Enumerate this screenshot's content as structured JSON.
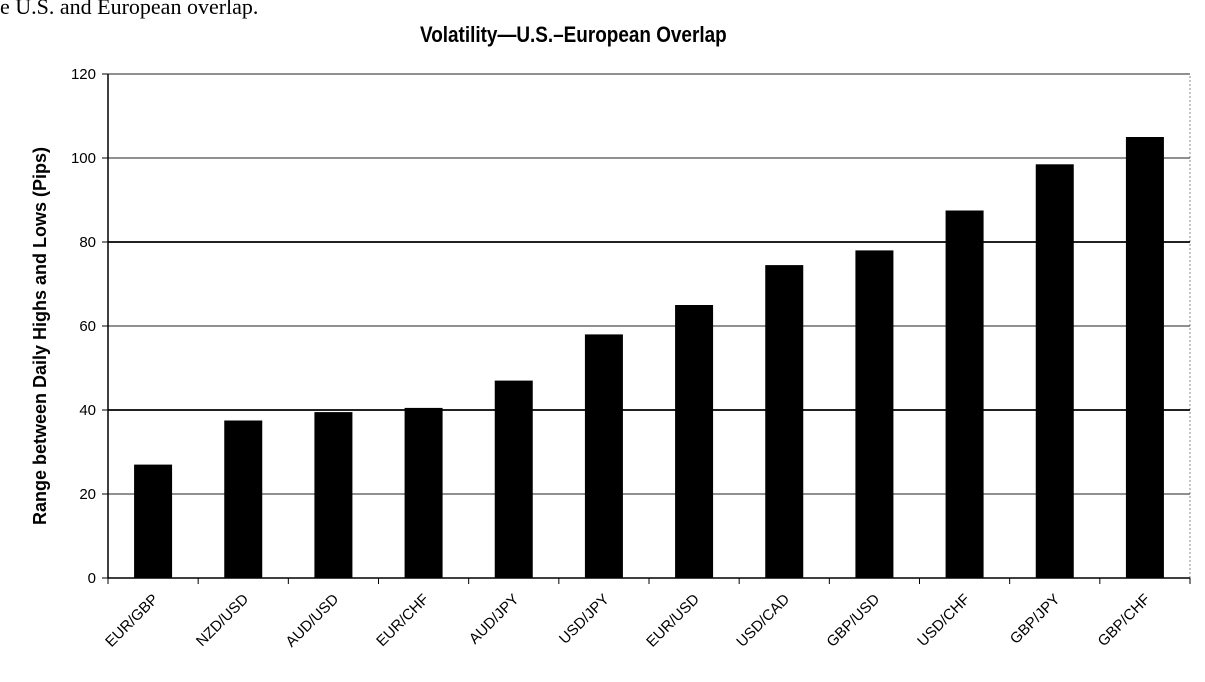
{
  "caption": "e U.S. and European overlap.",
  "chart_data": {
    "type": "bar",
    "title": "Volatility—U.S.–European Overlap",
    "xlabel": "",
    "ylabel": "Range between Daily Highs and Lows (Pips)",
    "ylim": [
      0,
      120
    ],
    "yticks": [
      "0",
      "20",
      "40",
      "60",
      "80",
      "100",
      "120"
    ],
    "categories": [
      "EUR/GBP",
      "NZD/USD",
      "AUD/USD",
      "EUR/CHF",
      "AUD/JPY",
      "USD/JPY",
      "EUR/USD",
      "USD/CAD",
      "GBP/USD",
      "USD/CHF",
      "GBP/JPY",
      "GBP/CHF"
    ],
    "values": [
      27,
      37.5,
      39.5,
      40.5,
      47,
      58,
      65,
      74.5,
      78,
      87.5,
      98.5,
      105
    ],
    "bar_color": "#000000",
    "grid": true,
    "legend": "none"
  }
}
